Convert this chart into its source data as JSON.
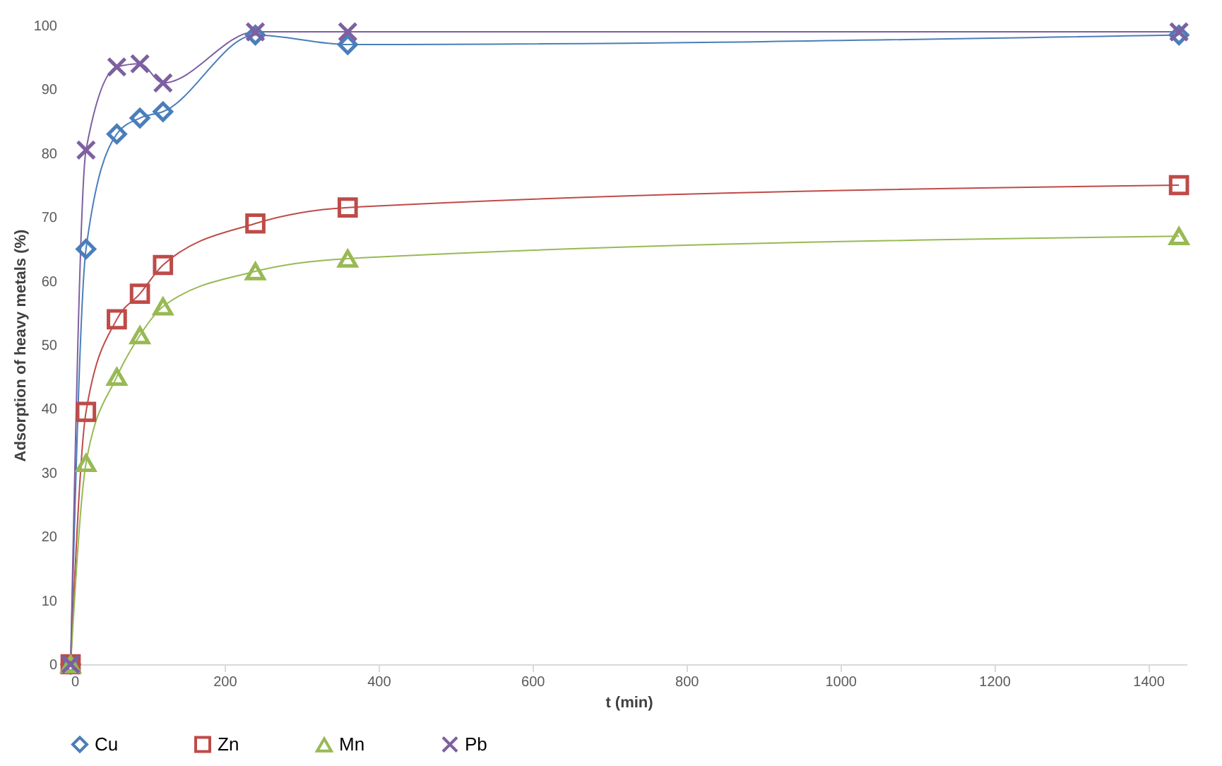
{
  "chart_data": {
    "type": "line",
    "xlabel": "t (min)",
    "ylabel": "Adsorption of heavy metals (%)",
    "x": [
      0,
      20,
      60,
      90,
      120,
      240,
      360,
      1440
    ],
    "series": [
      {
        "name": "Cu",
        "color": "#4a7ebb",
        "marker": "diamond",
        "values": [
          0,
          65,
          83,
          85.5,
          86.5,
          98.5,
          97,
          98.5
        ]
      },
      {
        "name": "Zn",
        "color": "#be4b48",
        "marker": "square",
        "values": [
          0,
          39.5,
          54,
          58,
          62.5,
          69,
          71.5,
          75
        ]
      },
      {
        "name": "Mn",
        "color": "#98b954",
        "marker": "triangle",
        "values": [
          0,
          31.5,
          45,
          51.5,
          56,
          61.5,
          63.5,
          67
        ]
      },
      {
        "name": "Pb",
        "color": "#7d60a0",
        "marker": "cross",
        "values": [
          0,
          80.5,
          93.5,
          94,
          91,
          99,
          99,
          99
        ]
      }
    ],
    "xlim": [
      0,
      1450
    ],
    "xticks": [
      0,
      200,
      400,
      600,
      800,
      1000,
      1200,
      1400
    ],
    "ylim": [
      0,
      100
    ],
    "yticks": [
      0,
      10,
      20,
      30,
      40,
      50,
      60,
      70,
      80,
      90,
      100
    ],
    "grid": false,
    "legend": "bottom",
    "line_style": "solid"
  }
}
